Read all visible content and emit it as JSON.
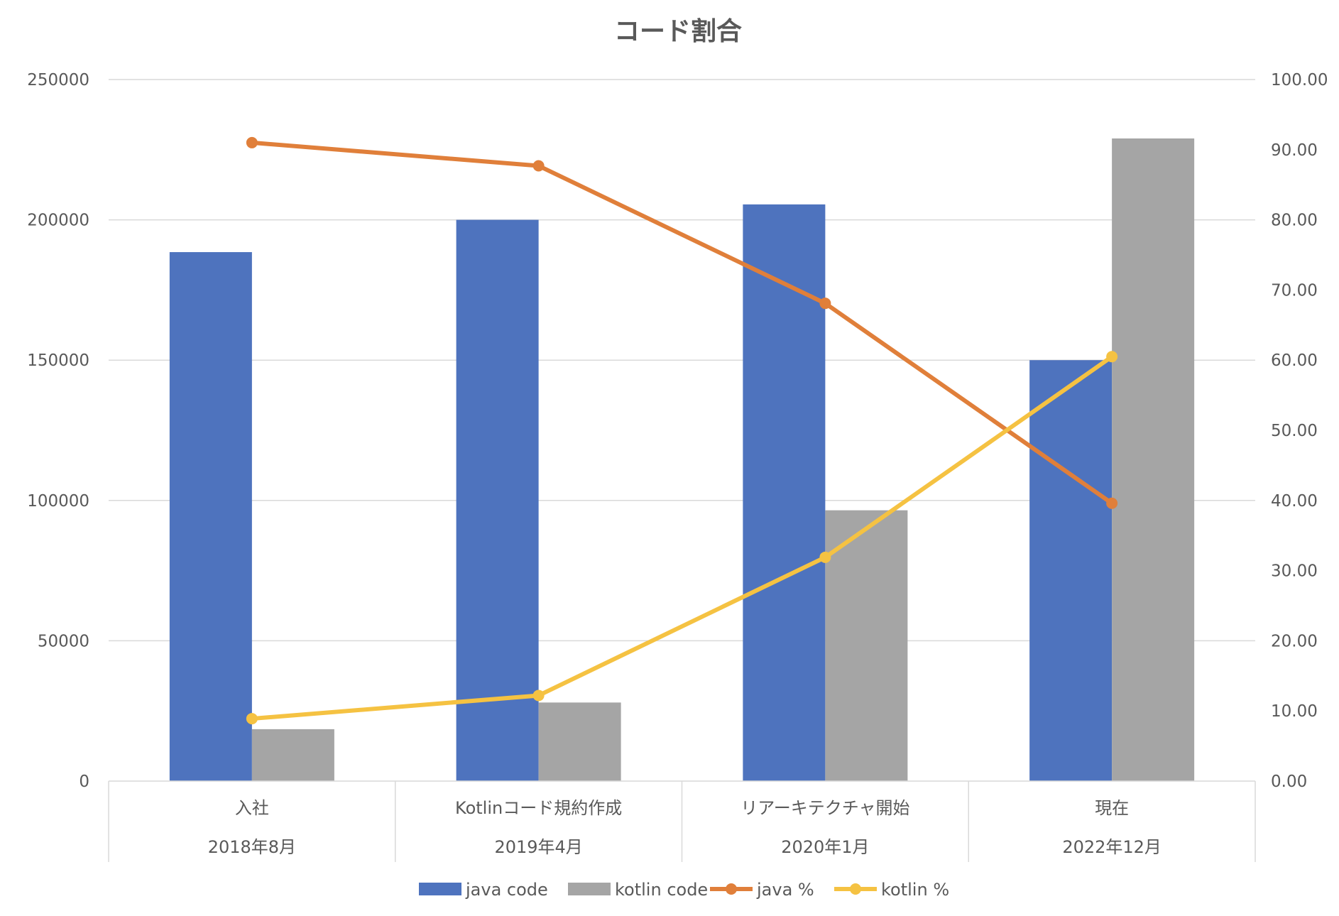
{
  "chart_data": {
    "type": "bar",
    "title": "コード割合",
    "categories": [
      {
        "label": "入社",
        "sublabel": "2018年8月"
      },
      {
        "label": "Kotlinコード規約作成",
        "sublabel": "2019年4月"
      },
      {
        "label": "リアーキテクチャ開始",
        "sublabel": "2020年1月"
      },
      {
        "label": "現在",
        "sublabel": "2022年12月"
      }
    ],
    "series": [
      {
        "name": "java code",
        "type": "bar",
        "axis": "left",
        "color": "#4E73BE",
        "values": [
          188500,
          200000,
          205500,
          150000
        ]
      },
      {
        "name": "kotlin code",
        "type": "bar",
        "axis": "left",
        "color": "#A5A5A5",
        "values": [
          18500,
          28000,
          96500,
          229000
        ]
      },
      {
        "name": "java %",
        "type": "line",
        "axis": "right",
        "color": "#E07F3A",
        "values": [
          91.0,
          87.7,
          68.1,
          39.6
        ]
      },
      {
        "name": "kotlin %",
        "type": "line",
        "axis": "right",
        "color": "#F5C242",
        "values": [
          8.9,
          12.2,
          31.9,
          60.5
        ]
      }
    ],
    "y_left": {
      "min": 0,
      "max": 250000,
      "ticks": [
        "0",
        "50000",
        "100000",
        "150000",
        "200000",
        "250000"
      ]
    },
    "y_right": {
      "min": 0,
      "max": 100,
      "ticks": [
        "0.00",
        "10.00",
        "20.00",
        "30.00",
        "40.00",
        "50.00",
        "60.00",
        "70.00",
        "80.00",
        "90.00",
        "100.00"
      ]
    },
    "grid": true,
    "legend_position": "bottom"
  }
}
